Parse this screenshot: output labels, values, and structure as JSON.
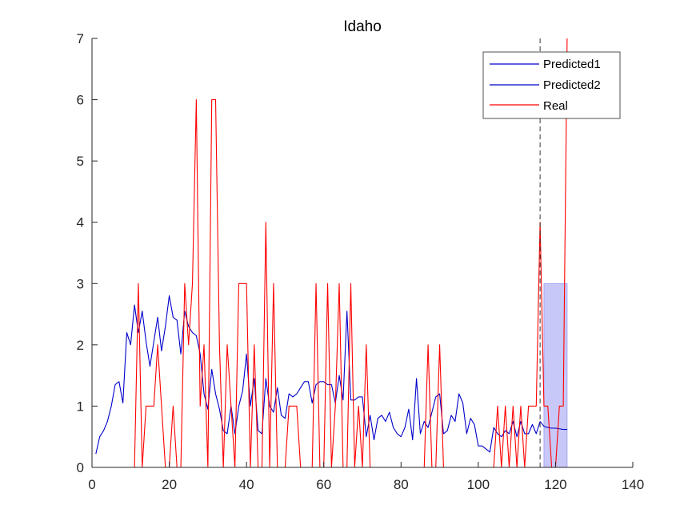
{
  "chart_data": {
    "type": "line",
    "title": "Idaho",
    "xlabel": "",
    "ylabel": "",
    "xlim": [
      0,
      140
    ],
    "ylim": [
      0,
      7
    ],
    "xticks": [
      0,
      20,
      40,
      60,
      80,
      100,
      120,
      140
    ],
    "yticks": [
      0,
      1,
      2,
      3,
      4,
      5,
      6,
      7
    ],
    "grid": false,
    "legend_position": "top-right",
    "vline_x": 116,
    "shaded_region": {
      "x": [
        117,
        123
      ],
      "y": [
        0,
        3
      ],
      "color": "#c8c8f8"
    },
    "series": [
      {
        "name": "Predicted1",
        "color": "#0000cc",
        "x": [
          1,
          2,
          3,
          4,
          5,
          6,
          7,
          8,
          9,
          10,
          11,
          12,
          13,
          14,
          15,
          16,
          17,
          18,
          19,
          20,
          21,
          22,
          23,
          24,
          25,
          26,
          27,
          28,
          29,
          30,
          31,
          32,
          33,
          34,
          35,
          36,
          37,
          38,
          39,
          40,
          41,
          42,
          43,
          44,
          45,
          46,
          47,
          48,
          49,
          50,
          51,
          52,
          53,
          54,
          55,
          56,
          57,
          58,
          59,
          60,
          61,
          62,
          63,
          64,
          65,
          66,
          67,
          68,
          69,
          70,
          71,
          72,
          73,
          74,
          75,
          76,
          77,
          78,
          79,
          80,
          81,
          82,
          83,
          84,
          85,
          86,
          87,
          88,
          89,
          90,
          91,
          92,
          93,
          94,
          95,
          96,
          97,
          98,
          99,
          100,
          101,
          102,
          103,
          104,
          105,
          106,
          107,
          108,
          109,
          110,
          111,
          112,
          113,
          114,
          115,
          116
        ],
        "values": [
          0.22,
          0.5,
          0.6,
          0.75,
          1.0,
          1.35,
          1.4,
          1.05,
          2.2,
          2.0,
          2.65,
          2.2,
          2.55,
          2.05,
          1.65,
          2.05,
          2.45,
          1.9,
          2.3,
          2.8,
          2.45,
          2.4,
          1.85,
          2.55,
          2.3,
          2.2,
          2.15,
          1.85,
          1.2,
          0.95,
          1.6,
          1.2,
          0.95,
          0.6,
          0.55,
          1.0,
          0.55,
          1.0,
          1.25,
          1.85,
          1.0,
          1.45,
          0.6,
          0.55,
          1.45,
          1.0,
          0.9,
          1.3,
          0.85,
          0.8,
          1.2,
          1.15,
          1.2,
          1.3,
          1.4,
          1.4,
          1.05,
          1.35,
          1.4,
          1.4,
          1.35,
          1.35,
          1.05,
          1.5,
          1.1,
          2.55,
          1.1,
          1.1,
          1.15,
          1.15,
          0.5,
          0.85,
          0.45,
          0.8,
          0.85,
          0.75,
          0.9,
          0.65,
          0.55,
          0.5,
          0.65,
          0.95,
          0.45,
          1.45,
          0.55,
          0.75,
          0.65,
          0.9,
          1.15,
          1.2,
          0.55,
          0.6,
          0.85,
          0.75,
          1.2,
          1.05,
          0.55,
          0.8,
          0.7,
          0.35,
          0.35,
          0.3,
          0.25,
          0.65,
          0.55,
          0.5,
          0.6,
          0.55,
          0.75,
          0.5,
          0.75,
          0.55,
          0.55,
          0.7,
          0.55,
          0.75
        ]
      },
      {
        "name": "Predicted2",
        "color": "#0000cc",
        "x": [
          116,
          117,
          118,
          119,
          120,
          121,
          122,
          123
        ],
        "values": [
          0.75,
          0.67,
          0.65,
          0.64,
          0.64,
          0.63,
          0.62,
          0.62
        ]
      },
      {
        "name": "Real",
        "color": "#ff0000",
        "x": [
          1,
          2,
          3,
          4,
          5,
          6,
          7,
          8,
          9,
          10,
          11,
          12,
          13,
          14,
          15,
          16,
          17,
          18,
          19,
          20,
          21,
          22,
          23,
          24,
          25,
          26,
          27,
          28,
          29,
          30,
          31,
          32,
          33,
          34,
          35,
          36,
          37,
          38,
          39,
          40,
          41,
          42,
          43,
          44,
          45,
          46,
          47,
          48,
          49,
          50,
          51,
          52,
          53,
          54,
          55,
          56,
          57,
          58,
          59,
          60,
          61,
          62,
          63,
          64,
          65,
          66,
          67,
          68,
          69,
          70,
          71,
          72,
          73,
          74,
          75,
          76,
          77,
          78,
          79,
          80,
          81,
          82,
          83,
          84,
          85,
          86,
          87,
          88,
          89,
          90,
          91,
          92,
          93,
          94,
          95,
          96,
          97,
          98,
          99,
          100,
          101,
          102,
          103,
          104,
          105,
          106,
          107,
          108,
          109,
          110,
          111,
          112,
          113,
          114,
          115,
          116,
          117,
          118,
          119,
          120,
          121,
          122,
          123
        ],
        "values": [
          0,
          0,
          0,
          0,
          0,
          0,
          0,
          0,
          0,
          0,
          0,
          3,
          0,
          1,
          1,
          1,
          2,
          1,
          0,
          0,
          1,
          0,
          0,
          3,
          2,
          3,
          6,
          1,
          2,
          0,
          6,
          6,
          2,
          0,
          2,
          1,
          0,
          3,
          3,
          3,
          0,
          2,
          0,
          0,
          4,
          0,
          3,
          0,
          0,
          0,
          1,
          1,
          1,
          0,
          0,
          0,
          0,
          3,
          0,
          0,
          3,
          0,
          1,
          3,
          0,
          0,
          3,
          0,
          1,
          0,
          2,
          0,
          0,
          0,
          0,
          0,
          0,
          0,
          0,
          0,
          0,
          0,
          0,
          0,
          0,
          0,
          2,
          0,
          0,
          2,
          0,
          0,
          0,
          0,
          0,
          0,
          0,
          0,
          0,
          0,
          0,
          0,
          0,
          0,
          1,
          0,
          1,
          0,
          1,
          0,
          1,
          0,
          1,
          1,
          1,
          4,
          1,
          1,
          0,
          0,
          1,
          1,
          7
        ]
      }
    ]
  }
}
